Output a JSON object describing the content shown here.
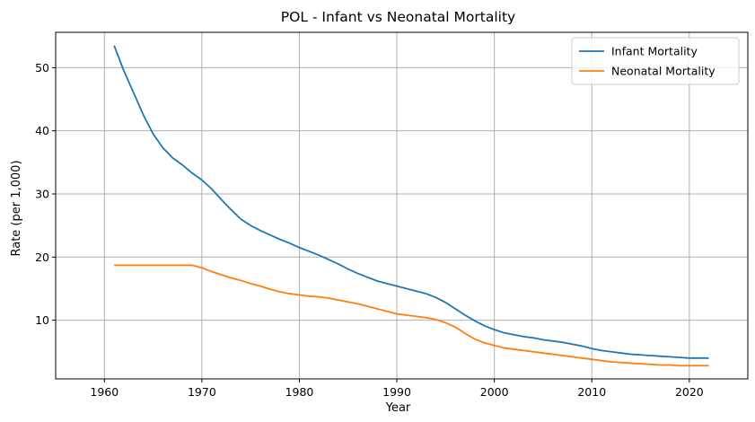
{
  "chart_data": {
    "type": "line",
    "title": "POL - Infant vs Neonatal Mortality",
    "xlabel": "Year",
    "ylabel": "Rate (per 1,000)",
    "xlim": [
      1955,
      2026
    ],
    "ylim": [
      0.7,
      55.6
    ],
    "xticks": [
      1960,
      1970,
      1980,
      1990,
      2000,
      2010,
      2020
    ],
    "yticks": [
      10,
      20,
      30,
      40,
      50
    ],
    "grid": true,
    "legend_position": "top-right",
    "x": [
      1961,
      1962,
      1963,
      1964,
      1965,
      1966,
      1967,
      1968,
      1969,
      1970,
      1971,
      1972,
      1973,
      1974,
      1975,
      1976,
      1977,
      1978,
      1979,
      1980,
      1981,
      1982,
      1983,
      1984,
      1985,
      1986,
      1987,
      1988,
      1989,
      1990,
      1991,
      1992,
      1993,
      1994,
      1995,
      1996,
      1997,
      1998,
      1999,
      2000,
      2001,
      2002,
      2003,
      2004,
      2005,
      2006,
      2007,
      2008,
      2009,
      2010,
      2011,
      2012,
      2013,
      2014,
      2015,
      2016,
      2017,
      2018,
      2019,
      2020,
      2021,
      2022
    ],
    "series": [
      {
        "name": "Infant Mortality",
        "color": "#1f77b4",
        "values": [
          53.5,
          49.5,
          46.0,
          42.5,
          39.5,
          37.3,
          35.7,
          34.6,
          33.3,
          32.2,
          30.8,
          29.1,
          27.5,
          26.0,
          25.0,
          24.2,
          23.5,
          22.8,
          22.2,
          21.5,
          20.9,
          20.3,
          19.6,
          18.9,
          18.1,
          17.4,
          16.8,
          16.2,
          15.8,
          15.4,
          15.0,
          14.6,
          14.2,
          13.6,
          12.8,
          11.8,
          10.8,
          9.9,
          9.1,
          8.5,
          8.0,
          7.7,
          7.4,
          7.2,
          6.9,
          6.7,
          6.5,
          6.2,
          5.9,
          5.5,
          5.2,
          5.0,
          4.8,
          4.6,
          4.5,
          4.4,
          4.3,
          4.2,
          4.1,
          4.0,
          4.0,
          4.0
        ]
      },
      {
        "name": "Neonatal Mortality",
        "color": "#ff7f0e",
        "values": [
          18.7,
          18.7,
          18.7,
          18.7,
          18.7,
          18.7,
          18.7,
          18.7,
          18.7,
          18.3,
          17.7,
          17.2,
          16.7,
          16.3,
          15.8,
          15.4,
          14.9,
          14.5,
          14.2,
          14.0,
          13.8,
          13.7,
          13.5,
          13.2,
          12.9,
          12.6,
          12.2,
          11.8,
          11.4,
          11.0,
          10.8,
          10.6,
          10.4,
          10.1,
          9.6,
          8.9,
          7.9,
          7.0,
          6.4,
          6.0,
          5.6,
          5.4,
          5.2,
          5.0,
          4.8,
          4.6,
          4.4,
          4.2,
          4.0,
          3.8,
          3.6,
          3.4,
          3.3,
          3.2,
          3.1,
          3.0,
          2.9,
          2.9,
          2.8,
          2.8,
          2.8,
          2.8
        ]
      }
    ]
  }
}
